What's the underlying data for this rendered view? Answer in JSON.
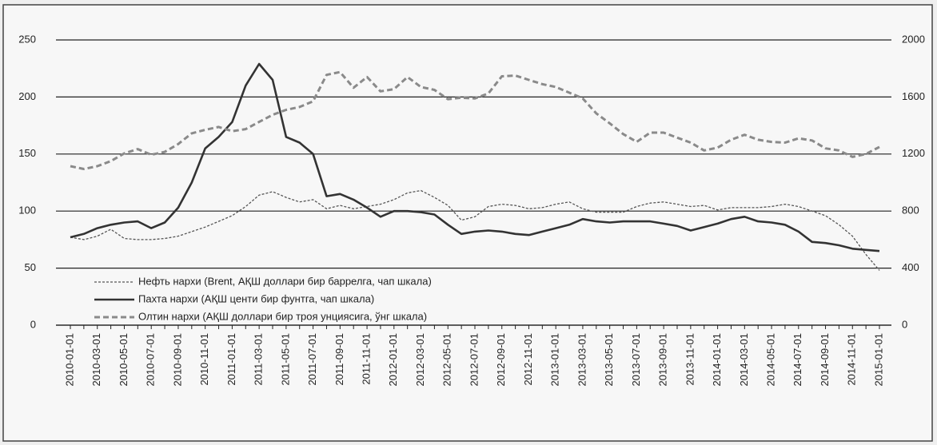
{
  "chart_data": {
    "type": "line",
    "categories": [
      "2010-01-01",
      null,
      "2010-03-01",
      null,
      "2010-05-01",
      null,
      "2010-07-01",
      null,
      "2010-09-01",
      null,
      "2010-11-01",
      null,
      "2011-01-01",
      null,
      "2011-03-01",
      null,
      "2011-05-01",
      null,
      "2011-07-01",
      null,
      "2011-09-01",
      null,
      "2011-11-01",
      null,
      "2012-01-01",
      null,
      "2012-03-01",
      null,
      "2012-05-01",
      null,
      "2012-07-01",
      null,
      "2012-09-01",
      null,
      "2012-11-01",
      null,
      "2013-01-01",
      null,
      "2013-03-01",
      null,
      "2013-05-01",
      null,
      "2013-07-01",
      null,
      "2013-09-01",
      null,
      "2013-11-01",
      null,
      "2014-01-01",
      null,
      "2014-03-01",
      null,
      "2014-05-01",
      null,
      "2014-07-01",
      null,
      "2014-09-01",
      null,
      "2014-11-01",
      null,
      "2015-01-01"
    ],
    "series": [
      {
        "name": "Нефть нархи (Brent, АҚШ доллари бир баррелга, чап шкала)",
        "color": "#555555",
        "values": [
          77,
          75,
          78,
          84,
          76,
          75,
          75,
          76,
          78,
          82,
          86,
          91,
          96,
          104,
          114,
          117,
          112,
          108,
          110,
          102,
          105,
          102,
          104,
          106,
          110,
          116,
          118,
          112,
          105,
          92,
          95,
          104,
          106,
          105,
          102,
          103,
          106,
          108,
          102,
          99,
          99,
          99,
          104,
          107,
          108,
          106,
          104,
          105,
          101,
          103,
          103,
          103,
          104,
          106,
          104,
          100,
          96,
          88,
          78,
          62,
          48
        ]
      },
      {
        "name": "Пахта нархи (АҚШ центи бир фунтга, чап шкала)",
        "color": "#333333",
        "values": [
          77,
          80,
          85,
          88,
          90,
          91,
          85,
          90,
          103,
          125,
          155,
          165,
          178,
          210,
          229,
          215,
          165,
          160,
          150,
          113,
          115,
          110,
          103,
          95,
          100,
          100,
          99,
          97,
          88,
          80,
          82,
          83,
          82,
          80,
          79,
          82,
          85,
          88,
          93,
          91,
          90,
          91,
          91,
          91,
          89,
          87,
          83,
          86,
          89,
          93,
          95,
          91,
          90,
          88,
          82,
          73,
          72,
          70,
          67,
          66,
          65
        ]
      },
      {
        "name": "Олтин нархи (АҚШ доллари бир троя унциясига, ўнг шкала)",
        "color": "#8a8a8a",
        "axis": "y2",
        "values": [
          1115,
          1095,
          1115,
          1150,
          1205,
          1235,
          1195,
          1215,
          1270,
          1345,
          1370,
          1390,
          1360,
          1375,
          1425,
          1475,
          1510,
          1530,
          1570,
          1755,
          1775,
          1665,
          1740,
          1640,
          1655,
          1740,
          1670,
          1650,
          1585,
          1595,
          1590,
          1625,
          1745,
          1750,
          1720,
          1690,
          1670,
          1630,
          1590,
          1485,
          1415,
          1340,
          1285,
          1350,
          1350,
          1315,
          1280,
          1225,
          1245,
          1300,
          1335,
          1300,
          1285,
          1280,
          1310,
          1295,
          1240,
          1225,
          1180,
          1200,
          1250
        ]
      }
    ],
    "ylim": [
      0,
      250
    ],
    "yticks": [
      0,
      50,
      100,
      150,
      200,
      250
    ],
    "y2lim": [
      0,
      2000
    ],
    "y2ticks": [
      0,
      400,
      800,
      1200,
      1600,
      2000
    ],
    "grid": true,
    "legend": "lower left"
  }
}
